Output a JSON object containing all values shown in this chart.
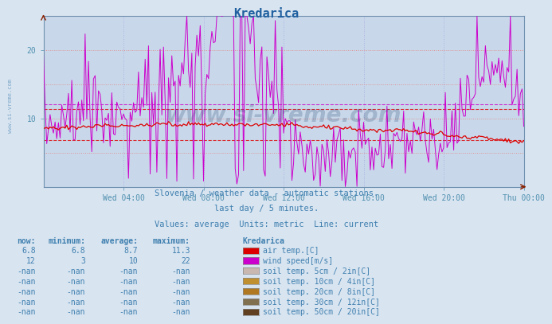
{
  "title": "Kredarica",
  "bg_color": "#d8e4f0",
  "plot_bg_color": "#c8d8ea",
  "title_color": "#2060a0",
  "axis_label_color": "#5090b0",
  "text_color": "#4080b0",
  "grid_color_h": "#e09090",
  "grid_color_v": "#b0b0e0",
  "xlim": [
    0,
    288
  ],
  "ylim": [
    0,
    25
  ],
  "yticks": [
    10,
    20
  ],
  "xtick_labels": [
    "Wed 04:00",
    "Wed 08:00",
    "Wed 12:00",
    "Wed 16:00",
    "Wed 20:00",
    "Thu 00:00"
  ],
  "xtick_pos": [
    48,
    96,
    144,
    192,
    240,
    288
  ],
  "subtitle1": "Slovenia / weather data - automatic stations.",
  "subtitle2": "last day / 5 minutes.",
  "subtitle3": "Values: average  Units: metric  Line: current",
  "table_header_cols": [
    "now:",
    "minimum:",
    "average:",
    "maximum:",
    "Kredarica"
  ],
  "table_rows": [
    [
      "6.8",
      "6.8",
      "8.7",
      "11.3",
      "#dd0000",
      "air temp.[C]"
    ],
    [
      "12",
      "3",
      "10",
      "22",
      "#cc00cc",
      "wind speed[m/s]"
    ],
    [
      "-nan",
      "-nan",
      "-nan",
      "-nan",
      "#c8b8b0",
      "soil temp. 5cm / 2in[C]"
    ],
    [
      "-nan",
      "-nan",
      "-nan",
      "-nan",
      "#c09030",
      "soil temp. 10cm / 4in[C]"
    ],
    [
      "-nan",
      "-nan",
      "-nan",
      "-nan",
      "#b07820",
      "soil temp. 20cm / 8in[C]"
    ],
    [
      "-nan",
      "-nan",
      "-nan",
      "-nan",
      "#807050",
      "soil temp. 30cm / 12in[C]"
    ],
    [
      "-nan",
      "-nan",
      "-nan",
      "-nan",
      "#604020",
      "soil temp. 50cm / 20in[C]"
    ]
  ],
  "watermark": "www.si-vreme.com",
  "watermark_color": "#1a3a6a",
  "watermark_alpha": 0.22,
  "hline_red_min": 6.8,
  "hline_red_max": 11.3,
  "hline_magenta_avg": 12.0,
  "air_temp_color": "#dd0000",
  "wind_speed_color": "#cc00cc"
}
